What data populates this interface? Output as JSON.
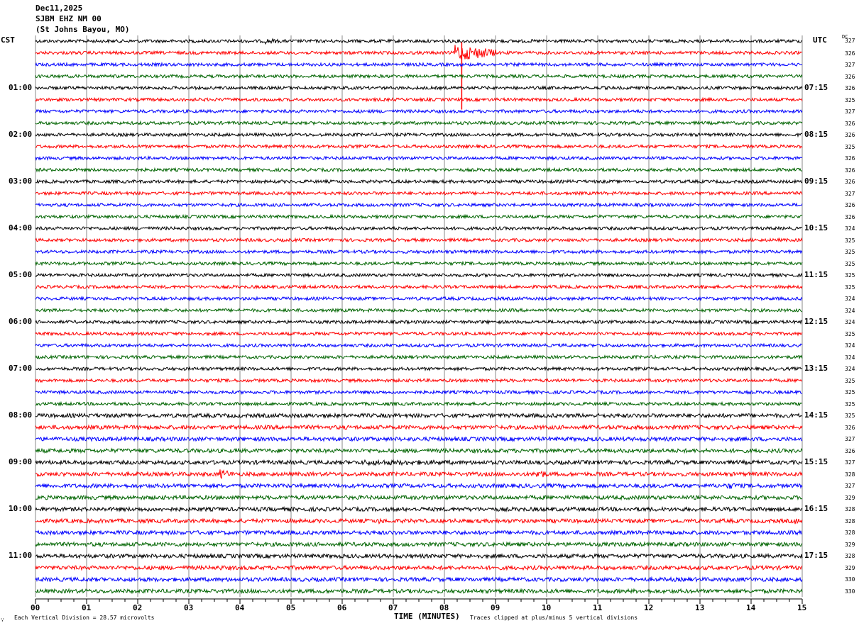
{
  "header": {
    "date": "Dec11,2025",
    "station": "SJBM EHZ NM 00",
    "location": "(St Johns Bayou, MO)"
  },
  "left_label": "CST",
  "right_label": "UTC",
  "dc_label": "DC",
  "footer": {
    "corner_mark": "∵",
    "scale": "Each Vertical Division =   28.57 microvolts",
    "xlabel": "TIME (MINUTES)",
    "clip_note": "Traces clipped at plus/minus 5 vertical divisions"
  },
  "chart_data": {
    "type": "line",
    "title": "",
    "xlabel": "TIME (MINUTES)",
    "xlim": [
      0,
      15
    ],
    "x_ticks": [
      "00",
      "01",
      "02",
      "03",
      "04",
      "05",
      "06",
      "07",
      "08",
      "09",
      "10",
      "11",
      "12",
      "13",
      "14",
      "15"
    ],
    "minutes_per_row": 15,
    "rows": 48,
    "trace_colors": [
      "#000000",
      "#ff0000",
      "#0000ff",
      "#006400"
    ],
    "grid": true,
    "cst_labels": [
      "01:00",
      "02:00",
      "03:00",
      "04:00",
      "05:00",
      "06:00",
      "07:00",
      "08:00",
      "09:00",
      "10:00",
      "11:00"
    ],
    "utc_labels": [
      "07:15",
      "08:15",
      "09:15",
      "10:15",
      "11:15",
      "12:15",
      "13:15",
      "14:15",
      "15:15",
      "16:15",
      "17:15"
    ],
    "dc_values": [
      327,
      326,
      327,
      326,
      326,
      325,
      327,
      326,
      326,
      325,
      326,
      326,
      326,
      327,
      326,
      326,
      324,
      325,
      325,
      325,
      325,
      325,
      324,
      324,
      324,
      325,
      324,
      324,
      324,
      325,
      325,
      325,
      325,
      326,
      327,
      326,
      327,
      328,
      327,
      329,
      328,
      328,
      328,
      329,
      328,
      329,
      330,
      330
    ],
    "events": [
      {
        "row": 0,
        "start": 4.5,
        "end": 4.9,
        "amplitude": 4
      },
      {
        "row": 1,
        "start": 8.2,
        "end": 9.0,
        "amplitude": 12,
        "clipped_spike": true
      },
      {
        "row": 8,
        "start": 12.4,
        "end": 14.6,
        "amplitude": 2
      },
      {
        "row": 13,
        "start": 12.9,
        "end": 14.2,
        "amplitude": 2
      },
      {
        "row": 14,
        "start": 0.0,
        "end": 2.0,
        "amplitude": 2
      },
      {
        "row": 21,
        "start": 9.5,
        "end": 10.0,
        "amplitude": 2.5
      },
      {
        "row": 21,
        "start": 13.0,
        "end": 13.3,
        "amplitude": 3
      },
      {
        "row": 22,
        "start": 3.6,
        "end": 3.9,
        "amplitude": 3
      },
      {
        "row": 36,
        "start": 6.4,
        "end": 10.6,
        "amplitude": 4
      },
      {
        "row": 36,
        "start": 12.3,
        "end": 12.6,
        "amplitude": 4
      },
      {
        "row": 37,
        "start": 3.6,
        "end": 3.9,
        "amplitude": 7
      },
      {
        "row": 37,
        "start": 9.8,
        "end": 10.0,
        "amplitude": 8
      },
      {
        "row": 38,
        "start": 13.5,
        "end": 14.0,
        "amplitude": 5
      },
      {
        "row": 41,
        "start": 6.7,
        "end": 6.8,
        "amplitude": 6
      },
      {
        "row": 41,
        "start": 14.85,
        "end": 14.95,
        "amplitude": 6
      },
      {
        "row": 45,
        "start": 3.6,
        "end": 3.8,
        "amplitude": 4
      },
      {
        "row": 47,
        "start": 5.4,
        "end": 6.5,
        "amplitude": 2
      }
    ]
  }
}
